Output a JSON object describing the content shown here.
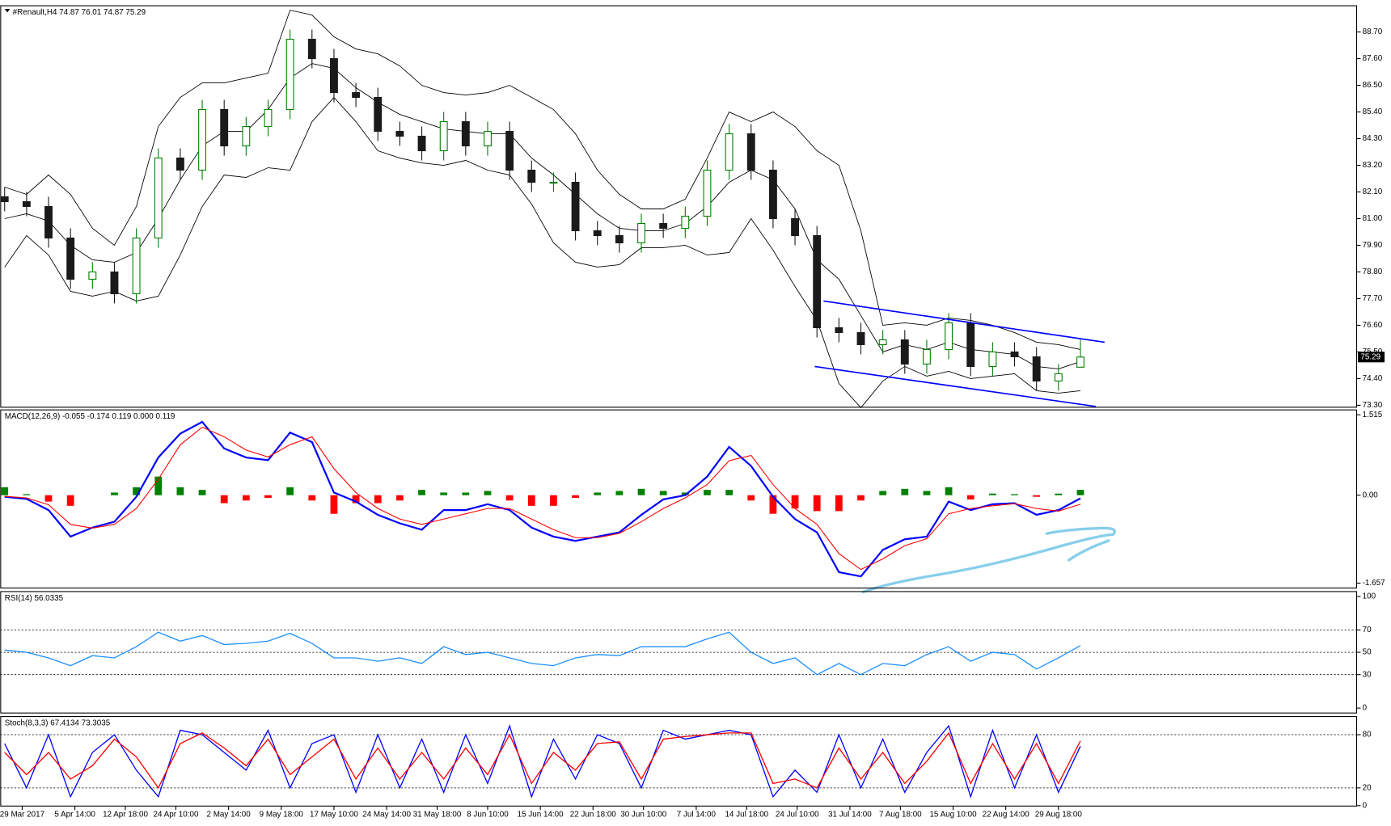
{
  "chart_data": [
    {
      "type": "candlestick",
      "title": "#Renault,H4  74.87 76.01 74.87 75.29",
      "up_color": "#008000",
      "down_color": "#1a1a1a",
      "open": [
        81.9,
        81.7,
        81.5,
        80.2,
        78.5,
        78.8,
        77.9,
        80.2,
        83.5,
        83.0,
        85.5,
        84.0,
        84.8,
        85.5,
        88.4,
        87.6,
        86.2,
        86.0,
        84.6,
        84.4,
        83.8,
        85.0,
        84.0,
        84.6,
        83.0,
        82.5,
        82.5,
        80.5,
        80.3,
        80.0,
        80.8,
        80.6,
        81.1,
        83.0,
        84.5,
        83.0,
        81.0,
        80.3,
        76.5,
        76.3,
        75.8,
        76.0,
        75.0,
        75.6,
        76.7,
        74.9,
        75.5,
        75.3,
        74.3,
        74.87
      ],
      "high": [
        82.3,
        82.1,
        81.9,
        80.6,
        79.2,
        79.2,
        80.6,
        83.9,
        83.9,
        85.9,
        85.9,
        85.2,
        85.9,
        88.8,
        88.8,
        88.0,
        86.6,
        86.4,
        85.0,
        84.8,
        85.4,
        85.4,
        85.0,
        85.0,
        83.4,
        82.9,
        82.9,
        80.9,
        80.7,
        81.2,
        81.2,
        81.5,
        83.4,
        84.9,
        84.9,
        83.4,
        81.4,
        80.7,
        76.9,
        76.7,
        76.4,
        76.4,
        76.0,
        77.1,
        77.1,
        75.9,
        75.9,
        75.7,
        75.0,
        76.01
      ],
      "low": [
        81.3,
        81.1,
        79.8,
        78.1,
        78.1,
        77.5,
        77.5,
        79.8,
        82.6,
        82.6,
        83.6,
        83.6,
        84.4,
        85.1,
        87.2,
        85.8,
        85.6,
        84.2,
        84.0,
        83.4,
        83.4,
        83.6,
        83.6,
        82.6,
        82.1,
        82.1,
        80.1,
        79.9,
        79.6,
        79.6,
        80.2,
        80.2,
        80.7,
        82.6,
        82.6,
        80.6,
        79.9,
        76.1,
        75.9,
        75.4,
        75.4,
        74.6,
        74.6,
        75.2,
        74.5,
        74.5,
        74.9,
        73.9,
        73.9,
        74.87
      ],
      "close": [
        81.7,
        81.5,
        80.2,
        78.5,
        78.8,
        77.9,
        80.2,
        83.5,
        83.0,
        85.5,
        84.0,
        84.8,
        85.5,
        88.4,
        87.6,
        86.2,
        86.0,
        84.6,
        84.4,
        83.8,
        85.0,
        84.0,
        84.6,
        83.0,
        82.5,
        82.5,
        80.5,
        80.3,
        80.0,
        80.8,
        80.6,
        81.1,
        83.0,
        84.5,
        83.0,
        81.0,
        80.3,
        76.5,
        76.3,
        75.8,
        76.0,
        75.0,
        75.6,
        76.7,
        74.9,
        75.5,
        75.3,
        74.3,
        74.6,
        75.29
      ],
      "bands": {
        "color": "#000000",
        "upper": [
          82.3,
          82.0,
          82.8,
          82.0,
          80.6,
          79.9,
          81.5,
          84.8,
          86.0,
          86.6,
          86.6,
          86.8,
          87.0,
          89.6,
          89.4,
          88.5,
          88.0,
          87.8,
          87.3,
          86.5,
          86.2,
          86.1,
          86.2,
          86.5,
          86.0,
          85.5,
          84.5,
          83.0,
          82.0,
          81.4,
          81.4,
          81.8,
          83.5,
          85.4,
          85.0,
          85.4,
          84.8,
          83.8,
          83.2,
          80.5,
          76.6,
          76.7,
          76.6,
          76.9,
          76.8,
          76.6,
          76.3,
          75.9,
          75.8,
          75.6
        ],
        "middle": [
          81.0,
          81.2,
          80.9,
          79.9,
          79.3,
          79.2,
          79.6,
          81.0,
          82.6,
          84.0,
          84.6,
          84.6,
          85.5,
          86.8,
          87.4,
          87.2,
          86.4,
          85.8,
          85.3,
          85.0,
          84.7,
          84.6,
          84.5,
          84.5,
          83.5,
          82.8,
          82.0,
          81.2,
          80.6,
          80.5,
          80.5,
          80.8,
          81.5,
          82.5,
          83.0,
          82.6,
          81.4,
          79.3,
          78.5,
          77.0,
          75.5,
          75.8,
          75.6,
          75.9,
          75.6,
          75.5,
          75.4,
          74.9,
          74.8,
          75.1
        ],
        "lower": [
          79.0,
          80.3,
          79.5,
          78.0,
          77.8,
          78.0,
          77.6,
          77.8,
          79.5,
          81.5,
          82.8,
          82.7,
          83.1,
          83.0,
          85.0,
          86.0,
          85.0,
          83.8,
          83.5,
          83.3,
          83.2,
          83.4,
          83.0,
          82.8,
          81.6,
          80.0,
          79.2,
          79.0,
          79.1,
          79.8,
          79.8,
          79.9,
          79.5,
          79.6,
          81.0,
          79.7,
          78.2,
          76.8,
          74.2,
          73.2,
          74.3,
          74.9,
          74.5,
          74.7,
          74.4,
          74.5,
          74.6,
          73.9,
          73.8,
          73.9
        ]
      },
      "trendlines": [
        {
          "color": "#0000ff",
          "x": [
            37.3,
            50.1
          ],
          "y": [
            77.6,
            75.9
          ]
        },
        {
          "color": "#0000ff",
          "x": [
            36.9,
            49.7
          ],
          "y": [
            74.9,
            73.25
          ]
        }
      ],
      "last_price": 75.29,
      "xlim": [
        -0.2,
        61.6
      ],
      "ylim": [
        73.2,
        89.8
      ],
      "yticks": [
        {
          "value": 88.7,
          "label": "88.70"
        },
        {
          "value": 87.6,
          "label": "87.60"
        },
        {
          "value": 86.5,
          "label": "86.50"
        },
        {
          "value": 85.4,
          "label": "85.40"
        },
        {
          "value": 84.3,
          "label": "84.30"
        },
        {
          "value": 83.2,
          "label": "83.20"
        },
        {
          "value": 82.1,
          "label": "82.10"
        },
        {
          "value": 81,
          "label": "81.00"
        },
        {
          "value": 79.9,
          "label": "79.90"
        },
        {
          "value": 78.8,
          "label": "78.80"
        },
        {
          "value": 77.7,
          "label": "77.70"
        },
        {
          "value": 76.6,
          "label": "76.60"
        },
        {
          "value": 75.5,
          "label": "75.50"
        },
        {
          "value": 74.4,
          "label": "74.40"
        },
        {
          "value": 73.3,
          "label": "73.30"
        }
      ]
    },
    {
      "type": "macd",
      "title": "MACD(12,26,9) -0.055 -0.174 0.119 0.000 0.119",
      "histogram": {
        "positive_color": "#008000",
        "negative_color": "#ff0000",
        "values": [
          0.15,
          0.02,
          -0.12,
          -0.2,
          0,
          0.05,
          0.15,
          0.35,
          0.15,
          0.1,
          -0.15,
          -0.1,
          -0.05,
          0.15,
          -0.1,
          -0.35,
          -0.15,
          -0.15,
          -0.1,
          0.1,
          0.05,
          0.05,
          0.08,
          -0.1,
          -0.2,
          -0.2,
          -0.05,
          0.05,
          0.08,
          0.12,
          0.08,
          0.05,
          0.1,
          0.1,
          -0.1,
          -0.35,
          -0.25,
          -0.3,
          -0.3,
          -0.1,
          0.08,
          0.12,
          0.08,
          0.15,
          -0.08,
          0.03,
          0.02,
          -0.03,
          0.03,
          0.1
        ]
      },
      "series": [
        {
          "color": "#0000ff",
          "values": [
            -0.03,
            -0.07,
            -0.28,
            -0.78,
            -0.61,
            -0.5,
            -0.03,
            0.71,
            1.16,
            1.38,
            0.88,
            0.71,
            0.66,
            1.18,
            1.0,
            0.05,
            -0.12,
            -0.37,
            -0.53,
            -0.65,
            -0.28,
            -0.28,
            -0.17,
            -0.28,
            -0.61,
            -0.78,
            -0.86,
            -0.78,
            -0.7,
            -0.37,
            -0.08,
            0,
            0.35,
            0.91,
            0.55,
            -0.03,
            -0.45,
            -0.7,
            -1.45,
            -1.53,
            -1.03,
            -0.83,
            -0.78,
            -0.12,
            -0.28,
            -0.17,
            -0.15,
            -0.37,
            -0.28,
            -0.06
          ]
        },
        {
          "color": "#ff0000",
          "values": [
            -0.02,
            -0.05,
            -0.18,
            -0.55,
            -0.62,
            -0.55,
            -0.25,
            0.3,
            0.95,
            1.28,
            1.1,
            0.85,
            0.72,
            0.95,
            1.1,
            0.5,
            0.05,
            -0.25,
            -0.45,
            -0.55,
            -0.45,
            -0.35,
            -0.25,
            -0.25,
            -0.45,
            -0.65,
            -0.8,
            -0.8,
            -0.72,
            -0.5,
            -0.25,
            -0.05,
            0.2,
            0.65,
            0.75,
            0.2,
            -0.25,
            -0.55,
            -1.1,
            -1.4,
            -1.2,
            -0.95,
            -0.82,
            -0.35,
            -0.25,
            -0.2,
            -0.16,
            -0.25,
            -0.3,
            -0.17
          ]
        }
      ],
      "xlim": [
        -0.2,
        61.6
      ],
      "ylim": [
        -1.757,
        1.615
      ],
      "yticks": [
        1.515,
        {
          "value": 0,
          "label": "0.00"
        },
        -1.657
      ]
    },
    {
      "type": "line",
      "title": "RSI(14) 56.0335",
      "series": [
        {
          "color": "#1e90ff",
          "values": [
            52,
            50,
            45,
            38,
            47,
            45,
            55,
            68,
            60,
            65,
            57,
            58,
            60,
            67,
            58,
            45,
            45,
            42,
            45,
            40,
            55,
            48,
            50,
            45,
            40,
            38,
            45,
            48,
            47,
            55,
            55,
            55,
            62,
            68,
            50,
            40,
            45,
            30,
            40,
            30,
            40,
            38,
            48,
            55,
            42,
            50,
            48,
            35,
            45,
            56
          ]
        }
      ],
      "levels": [
        30,
        50,
        70
      ],
      "xlim": [
        -0.2,
        61.6
      ],
      "ylim": [
        -4.8,
        104.8
      ],
      "yticks": [
        100,
        70,
        50,
        30,
        0
      ]
    },
    {
      "type": "line",
      "title": "Stoch(8,3,3) 67.4134 73.3035",
      "series": [
        {
          "color": "#0000ff",
          "values": [
            70,
            20,
            80,
            10,
            60,
            80,
            40,
            10,
            85,
            80,
            60,
            40,
            85,
            20,
            70,
            80,
            15,
            80,
            20,
            75,
            15,
            80,
            25,
            90,
            10,
            75,
            30,
            80,
            70,
            20,
            85,
            75,
            80,
            85,
            80,
            10,
            40,
            15,
            80,
            20,
            75,
            15,
            60,
            90,
            10,
            85,
            20,
            80,
            15,
            67
          ]
        },
        {
          "color": "#ff0000",
          "values": [
            60,
            35,
            60,
            30,
            45,
            75,
            55,
            20,
            70,
            82,
            65,
            45,
            75,
            35,
            55,
            75,
            30,
            65,
            30,
            60,
            30,
            65,
            35,
            80,
            25,
            60,
            40,
            70,
            72,
            30,
            75,
            78,
            80,
            82,
            82,
            25,
            30,
            20,
            65,
            30,
            60,
            25,
            50,
            82,
            25,
            70,
            30,
            70,
            25,
            73
          ]
        }
      ],
      "levels": [
        20,
        80
      ],
      "xlim": [
        -0.2,
        61.6
      ],
      "ylim": [
        -1,
        101
      ],
      "yticks": [
        80,
        20,
        0
      ],
      "xticks": [
        {
          "value": 0.8,
          "label": "29 Mar 2017"
        },
        {
          "value": 3.2,
          "label": "5 Apr 14:00"
        },
        {
          "value": 5.5,
          "label": "12 Apr 18:00"
        },
        {
          "value": 7.8,
          "label": "24 Apr 10:00"
        },
        {
          "value": 10.2,
          "label": "2 May 14:00"
        },
        {
          "value": 12.6,
          "label": "9 May 18:00"
        },
        {
          "value": 15.0,
          "label": "17 May 10:00"
        },
        {
          "value": 17.4,
          "label": "24 May 14:00"
        },
        {
          "value": 19.7,
          "label": "31 May 18:00"
        },
        {
          "value": 22.0,
          "label": "8 Jun 10:00"
        },
        {
          "value": 24.4,
          "label": "15 Jun 14:00"
        },
        {
          "value": 26.8,
          "label": "22 Jun 18:00"
        },
        {
          "value": 29.1,
          "label": "30 Jun 10:00"
        },
        {
          "value": 31.5,
          "label": "7 Jul 14:00"
        },
        {
          "value": 33.8,
          "label": "14 Jul 18:00"
        },
        {
          "value": 36.1,
          "label": "24 Jul 10:00"
        },
        {
          "value": 38.5,
          "label": "31 Jul 14:00"
        },
        {
          "value": 40.8,
          "label": "7 Aug 18:00"
        },
        {
          "value": 43.2,
          "label": "15 Aug 10:00"
        },
        {
          "value": 45.6,
          "label": "22 Aug 14:00"
        },
        {
          "value": 48.0,
          "label": "29 Aug 18:00"
        }
      ]
    }
  ]
}
